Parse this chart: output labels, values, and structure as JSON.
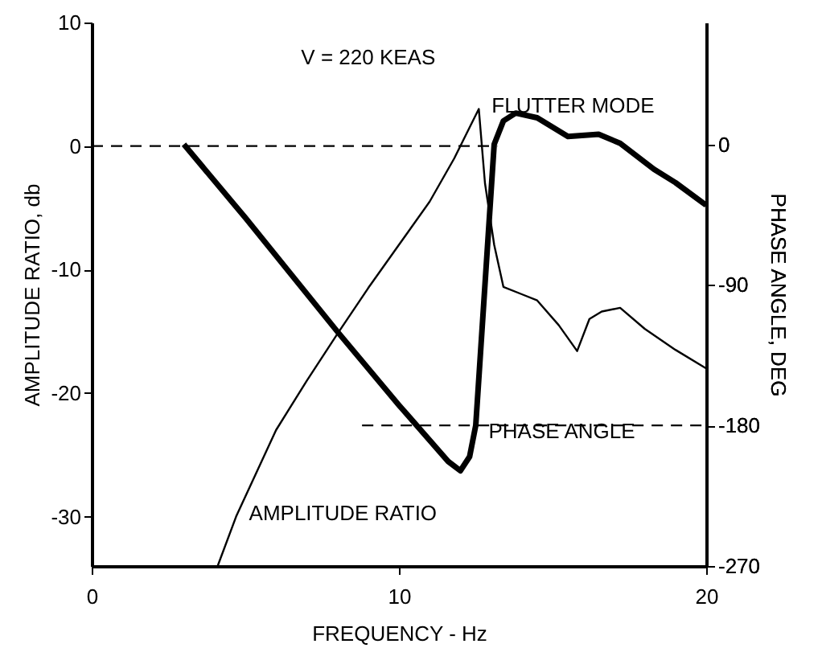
{
  "chart_data": {
    "type": "line",
    "xlabel": "FREQUENCY - Hz",
    "ylabel": "AMPLITUDE RATIO, db",
    "y2label": "PHASE ANGLE, DEG",
    "xlim": [
      0,
      20
    ],
    "xticks": [
      0,
      10,
      20
    ],
    "ylim": [
      -34,
      10
    ],
    "yticks": [
      10,
      0,
      -10,
      -20,
      -30
    ],
    "y2lim": [
      -270,
      78
    ],
    "y2ticks": [
      0,
      -90,
      -180,
      -270
    ],
    "grid": false,
    "marker": "none",
    "line_style": "solid",
    "series": [
      {
        "color": "#000000",
        "x": [
          4.1,
          4.7,
          6,
          7,
          8,
          9,
          10,
          11,
          11.8,
          12.3,
          12.6,
          12.8,
          13.1,
          13.4,
          14,
          14.5,
          15.2,
          15.8,
          16.2,
          16.6,
          17.2,
          18,
          19,
          20
        ],
        "values": [
          -34,
          -30,
          -23,
          -19,
          -15.2,
          -11.5,
          -8,
          -4.5,
          -1,
          1.5,
          3,
          -3,
          -8,
          -11.4,
          -12,
          -12.5,
          -14.5,
          -16.6,
          -14,
          -13.4,
          -13.1,
          -14.8,
          -16.5,
          -18
        ]
      },
      {
        "color": "#000000",
        "axis": "y2",
        "x": [
          3,
          5,
          8,
          10,
          11.6,
          12,
          12.3,
          12.5,
          12.8,
          13.1,
          13.4,
          13.8,
          14.5,
          15.5,
          16.5,
          17.2,
          18.3,
          19,
          20
        ],
        "values": [
          0,
          -47,
          -120,
          -167,
          -203,
          -209,
          -200,
          -180,
          -90,
          0,
          15,
          20,
          17,
          5,
          6.4,
          0.7,
          -16,
          -24.5,
          -39
        ]
      },
      {
        "color": "#000000",
        "line_style": "dashed",
        "x": [
          0,
          13.2
        ],
        "values": [
          0,
          0
        ]
      },
      {
        "color": "#000000",
        "line_style": "dashed",
        "axis": "y2",
        "x": [
          8.8,
          20
        ],
        "values": [
          -180,
          -180
        ]
      }
    ],
    "annotations": [
      "V = 220 KEAS",
      {
        "text": "FLUTTER MODE",
        "x": 12.6,
        "y": 3
      },
      {
        "text": "PHASE ANGLE",
        "x": 12.5,
        "y": -23.4
      },
      {
        "text": "AMPLITUDE RATIO",
        "x": 4.7,
        "y": -30
      }
    ]
  }
}
